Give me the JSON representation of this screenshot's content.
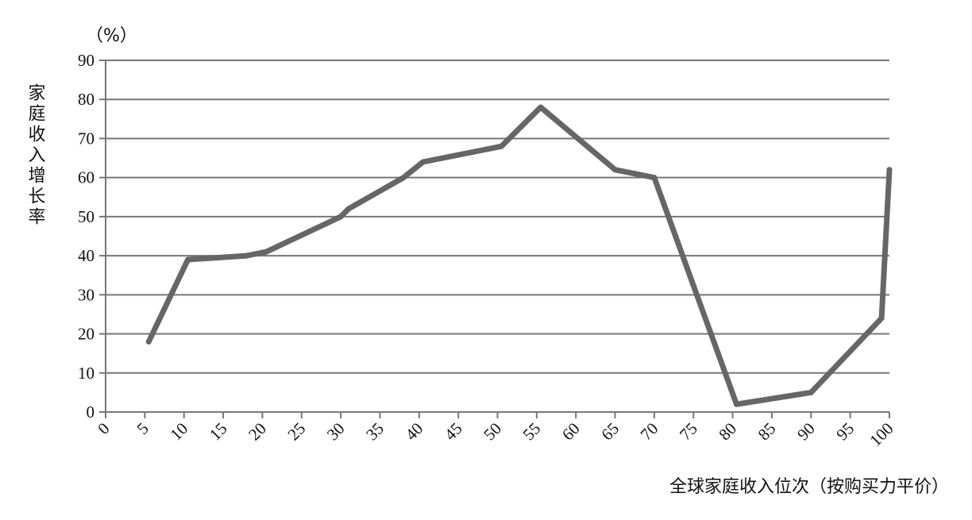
{
  "chart_data": {
    "type": "line",
    "y_unit": "（%）",
    "ylabel": "家庭收入增长率",
    "xlabel": "全球家庭收入位次（按购买力平价）",
    "ylim": [
      0,
      90
    ],
    "xlim": [
      0,
      100
    ],
    "yticks": [
      "0",
      "10",
      "20",
      "30",
      "40",
      "50",
      "60",
      "70",
      "80",
      "90"
    ],
    "xticks": [
      "0",
      "5",
      "10",
      "15",
      "20",
      "25",
      "30",
      "35",
      "40",
      "45",
      "50",
      "55",
      "60",
      "65",
      "70",
      "75",
      "80",
      "85",
      "90",
      "95",
      "100"
    ],
    "grid": "horizontal",
    "line_color": "#666666",
    "series": [
      {
        "x": [
          5.5,
          10.5,
          18,
          20.5,
          30,
          31,
          38,
          40.5,
          50.5,
          55.5,
          65,
          70,
          80.5,
          90,
          99,
          100
        ],
        "values": [
          18,
          39,
          40,
          41,
          50,
          52,
          60,
          64,
          68,
          78,
          62,
          60,
          2,
          5,
          24,
          62
        ]
      }
    ]
  }
}
